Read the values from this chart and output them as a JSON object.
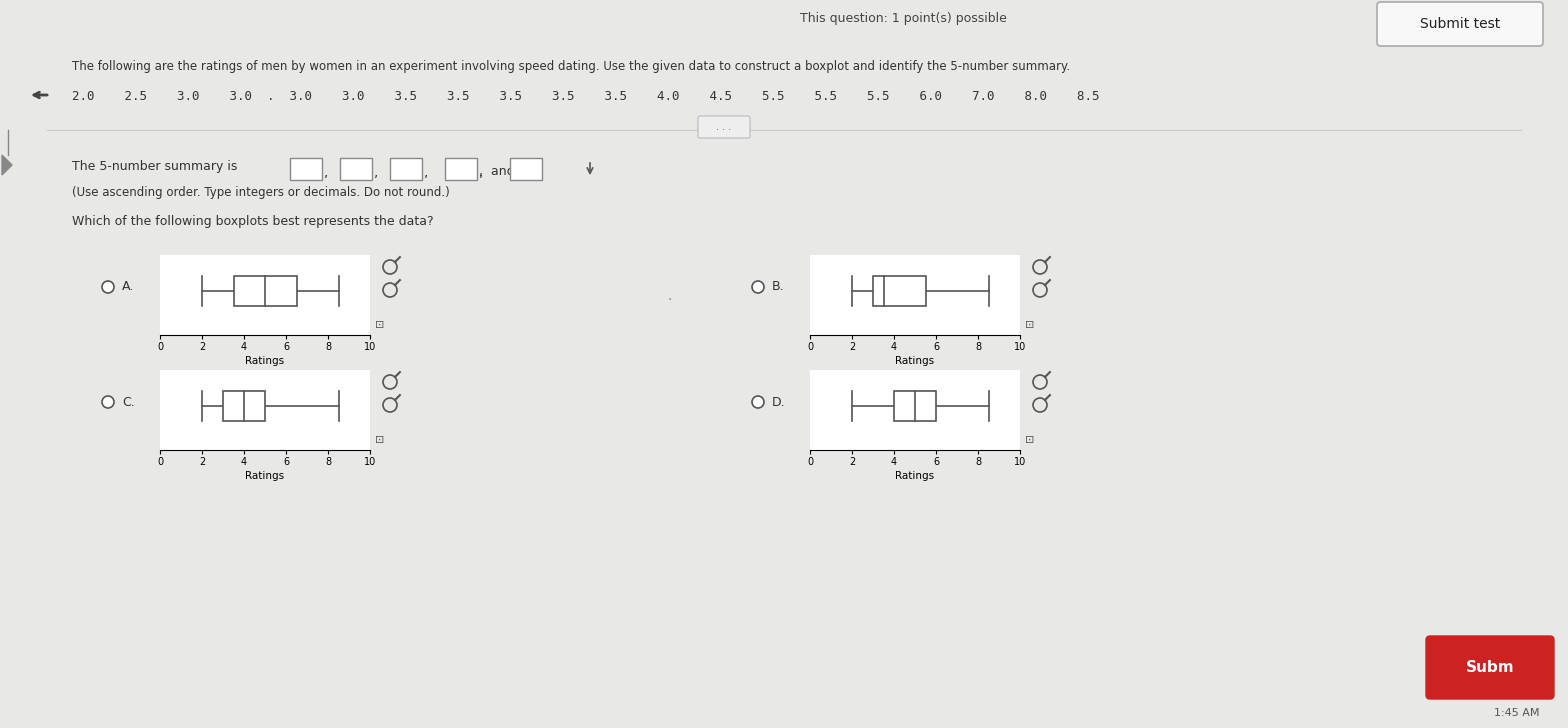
{
  "title_text": "This question: 1 point(s) possible",
  "submit_button": "Submit test",
  "main_text": "The following are the ratings of men by women in an experiment involving speed dating. Use the given data to construct a boxplot and identify the 5-number summary.",
  "data_values": "2.0    2.5    3.0    3.0  .  3.0    3.0    3.5    3.5    3.5    3.5    3.5    4.0    4.5    5.5    5.5    5.5    6.0    7.0    8.0    8.5",
  "summary_text": "The 5-number summary is",
  "summary_note": "(Use ascending order. Type integers or decimals. Do not round.)",
  "question_text": "Which of the following boxplots best represents the data?",
  "bg_color": "#e8e8e6",
  "panel_color": "#f2f2f0",
  "white_color": "#ffffff",
  "text_color": "#333333",
  "time_text": "1:45 AM",
  "options": {
    "A": {
      "min": 2.0,
      "q1": 3.5,
      "median": 5.0,
      "q3": 6.5,
      "max": 8.5
    },
    "B": {
      "min": 2.0,
      "q1": 3.0,
      "median": 3.5,
      "q3": 5.5,
      "max": 8.5
    },
    "C": {
      "min": 2.0,
      "q1": 3.0,
      "median": 4.0,
      "q3": 5.0,
      "max": 8.5
    },
    "D": {
      "min": 2.0,
      "q1": 4.0,
      "median": 5.0,
      "q3": 6.0,
      "max": 8.5
    }
  },
  "xlim": [
    0,
    10
  ],
  "xticks": [
    0,
    2,
    4,
    6,
    8,
    10
  ]
}
